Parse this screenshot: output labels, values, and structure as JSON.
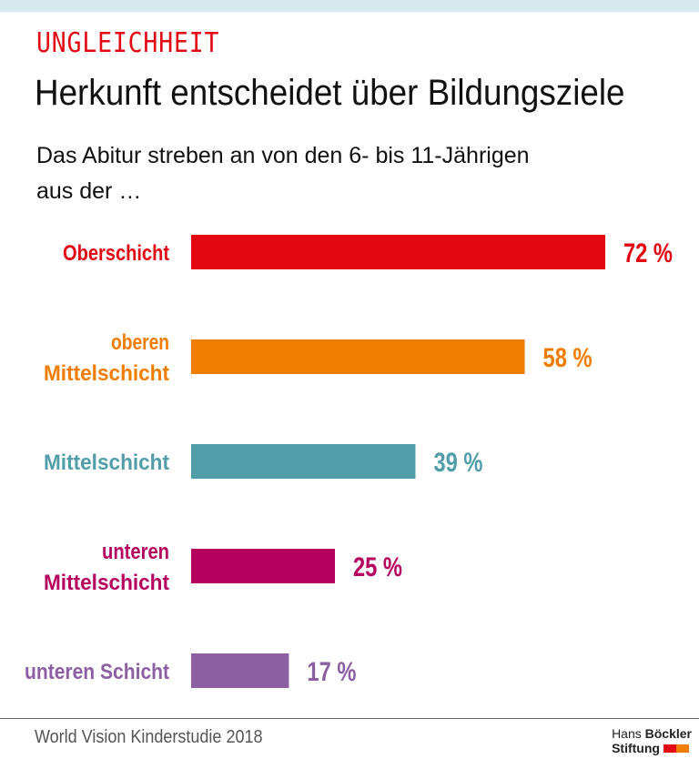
{
  "header": {
    "kicker": "UNGLEICHHEIT",
    "title": "Herkunft entscheidet über Bildungsziele",
    "subtitle_line1": "Das Abitur streben an von den 6- bis 11-Jährigen",
    "subtitle_line2": "aus der …"
  },
  "footer": {
    "source": "World Vision Kinderstudie 2018",
    "logo_line1_light": "Hans",
    "logo_line1_bold": "Böckler",
    "logo_line2": "Stiftung",
    "logo_colors": [
      "#e30613",
      "#f07d00"
    ]
  },
  "colors": {
    "kicker": "#e30613",
    "topbar": "#d6e9ef"
  },
  "chart_data": {
    "type": "bar",
    "orientation": "horizontal",
    "title": "Herkunft entscheidet über Bildungsziele",
    "subtitle": "Das Abitur streben an von den 6- bis 11-Jährigen aus der …",
    "categories": [
      [
        "Oberschicht"
      ],
      [
        "oberen",
        "Mittelschicht"
      ],
      [
        "Mittelschicht"
      ],
      [
        "unteren",
        "Mittelschicht"
      ],
      [
        "unteren Schicht"
      ]
    ],
    "values": [
      72,
      58,
      39,
      25,
      17
    ],
    "value_labels": [
      "72 %",
      "58 %",
      "39 %",
      "25 %",
      "17 %"
    ],
    "colors": [
      "#e30613",
      "#f07d00",
      "#519ea9",
      "#b5005f",
      "#8c5fa3"
    ],
    "unit": "%",
    "xlabel": "",
    "ylabel": "",
    "xlim": [
      0,
      72
    ],
    "grid": false,
    "legend": "none"
  }
}
